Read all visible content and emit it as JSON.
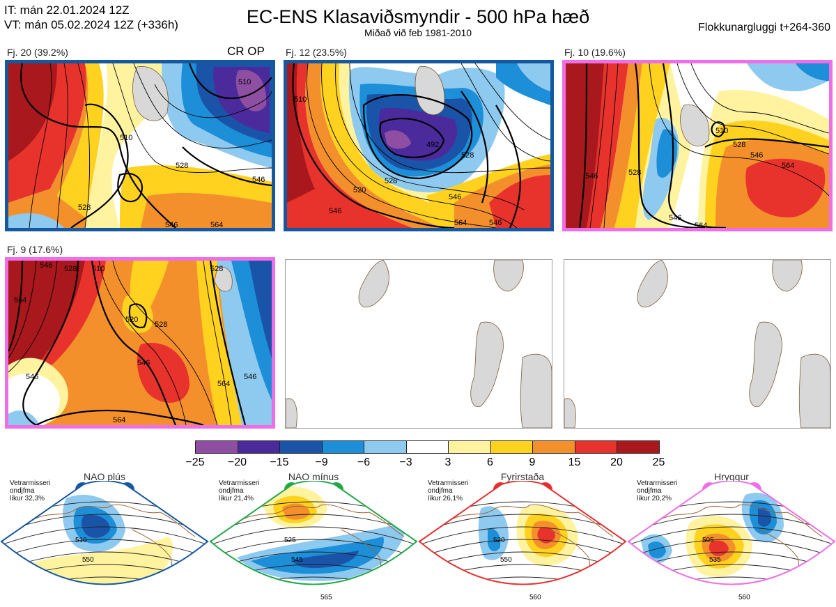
{
  "header": {
    "it_line": "IT: mán 22.01.2024 12Z",
    "vt_line": "VT: mán 05.02.2024 12Z  (+336h)",
    "title": "EC-ENS Klasaviðsmyndir - 500 hPa hæð",
    "subtitle": "Miðað við feb 1981-2010",
    "window": "Flokkunargluggi t+264-360"
  },
  "clusters": [
    {
      "caption": "Fj. 20 (39.2%)",
      "tag": "CR OP",
      "frame": "blue",
      "contours": [
        "510",
        "528",
        "546",
        "546",
        "528",
        "564",
        "510"
      ]
    },
    {
      "caption": "Fj. 12 (23.5%)",
      "frame": "blue",
      "contours": [
        "510",
        "520",
        "546",
        "528",
        "546",
        "564",
        "492",
        "546",
        "528"
      ]
    },
    {
      "caption": "Fj. 10 (19.6%)",
      "frame": "pink",
      "contours": [
        "546",
        "528",
        "546",
        "564",
        "528",
        "546",
        "564",
        "510"
      ]
    },
    {
      "caption": "Fj. 9 (17.6%)",
      "frame": "pink",
      "contours": [
        "564",
        "546",
        "528",
        "510",
        "520",
        "528",
        "546",
        "564",
        "546",
        "564",
        "546",
        "528"
      ]
    }
  ],
  "colorbar": {
    "ticks": [
      "−25",
      "−20",
      "−15",
      "−9",
      "−6",
      "−3",
      "3",
      "6",
      "9",
      "15",
      "20",
      "25"
    ],
    "colors": [
      "#8e4fa3",
      "#4b2a9c",
      "#1a54a8",
      "#1d8fd8",
      "#8ec9ef",
      "#ffffff",
      "#fff3a0",
      "#ffd21f",
      "#f4902c",
      "#e8332d",
      "#a8181c"
    ]
  },
  "regimes": [
    {
      "title": "NAO plús",
      "note": [
        "Vetrarmisseri",
        "ondjfma",
        "líkur 32,3%"
      ],
      "color": "#1558a0",
      "labels": [
        "510",
        "550"
      ]
    },
    {
      "title": "NAO mínus",
      "note": [
        "Vetrarmisseri",
        "ondjfma",
        "líkur 21,4%"
      ],
      "color": "#22a84a",
      "labels": [
        "525",
        "545",
        "565"
      ]
    },
    {
      "title": "Fyrirstaða",
      "note": [
        "Vetrarmisseri",
        "ondjfma",
        "líkur 26,1%"
      ],
      "color": "#e53030",
      "labels": [
        "520",
        "550",
        "560"
      ]
    },
    {
      "title": "Hryggur",
      "note": [
        "Vetrarmisseri",
        "ondjfma",
        "líkur 20,2%"
      ],
      "color": "#ee6ee8",
      "labels": [
        "505",
        "535",
        "560"
      ]
    }
  ]
}
